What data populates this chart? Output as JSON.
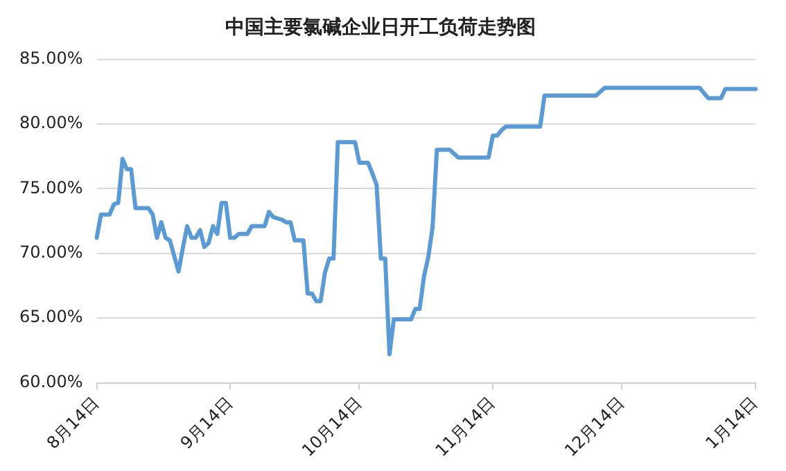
{
  "chart_data": {
    "type": "line",
    "title": "中国主要氯碱企业日开工负荷走势图",
    "categories": [
      "8月14日",
      null,
      null,
      null,
      null,
      null,
      null,
      null,
      null,
      null,
      null,
      null,
      null,
      null,
      null,
      null,
      null,
      null,
      null,
      null,
      null,
      null,
      null,
      null,
      null,
      null,
      null,
      null,
      null,
      null,
      null,
      "9月14日",
      null,
      null,
      null,
      null,
      null,
      null,
      null,
      null,
      null,
      null,
      null,
      null,
      null,
      null,
      null,
      null,
      null,
      null,
      null,
      null,
      null,
      null,
      null,
      null,
      null,
      null,
      null,
      null,
      null,
      "10月14日",
      null,
      null,
      null,
      null,
      null,
      null,
      null,
      null,
      null,
      null,
      null,
      null,
      null,
      null,
      null,
      null,
      null,
      null,
      null,
      null,
      null,
      null,
      null,
      null,
      null,
      null,
      null,
      null,
      null,
      null,
      "11月14日",
      null,
      null,
      null,
      null,
      null,
      null,
      null,
      null,
      null,
      null,
      null,
      null,
      null,
      null,
      null,
      null,
      null,
      null,
      null,
      null,
      null,
      null,
      null,
      null,
      null,
      null,
      null,
      null,
      null,
      "12月14日",
      null,
      null,
      null,
      null,
      null,
      null,
      null,
      null,
      null,
      null,
      null,
      null,
      null,
      null,
      null,
      null,
      null,
      null,
      null,
      null,
      null,
      null,
      null,
      null,
      null,
      null,
      null,
      null,
      null,
      null,
      "1月14日"
    ],
    "series": [
      {
        "color": "#5b9bd5",
        "values": [
          71.2,
          73.0,
          73.0,
          73.0,
          73.8,
          73.9,
          77.3,
          76.5,
          76.5,
          73.5,
          73.5,
          73.5,
          73.5,
          73.0,
          71.2,
          72.4,
          71.2,
          71.0,
          69.8,
          68.6,
          70.4,
          72.1,
          71.2,
          71.2,
          71.8,
          70.5,
          70.8,
          72.1,
          71.5,
          73.9,
          73.9,
          71.2,
          71.2,
          71.5,
          71.5,
          71.5,
          72.1,
          72.1,
          72.1,
          72.1,
          73.2,
          72.8,
          72.7,
          72.6,
          72.4,
          72.4,
          71.0,
          71.0,
          71.0,
          66.9,
          66.9,
          66.3,
          66.3,
          68.5,
          69.6,
          69.6,
          78.6,
          78.6,
          78.6,
          78.6,
          78.6,
          77.0,
          77.0,
          77.0,
          76.2,
          75.3,
          69.6,
          69.6,
          62.2,
          64.9,
          64.9,
          64.9,
          64.9,
          64.9,
          65.7,
          65.7,
          68.2,
          69.7,
          72.0,
          78.0,
          78.0,
          78.0,
          78.0,
          77.7,
          77.4,
          77.4,
          77.4,
          77.4,
          77.4,
          77.4,
          77.4,
          77.4,
          79.1,
          79.1,
          79.5,
          79.8,
          79.8,
          79.8,
          79.8,
          79.8,
          79.8,
          79.8,
          79.8,
          79.8,
          82.2,
          82.2,
          82.2,
          82.2,
          82.2,
          82.2,
          82.2,
          82.2,
          82.2,
          82.2,
          82.2,
          82.2,
          82.2,
          82.5,
          82.8,
          82.8,
          82.8,
          82.8,
          82.8,
          82.8,
          82.8,
          82.8,
          82.8,
          82.8,
          82.8,
          82.8,
          82.8,
          82.8,
          82.8,
          82.8,
          82.8,
          82.8,
          82.8,
          82.8,
          82.8,
          82.8,
          82.8,
          82.4,
          82.0,
          82.0,
          82.0,
          82.0,
          82.7,
          82.7,
          82.7,
          82.7,
          82.7,
          82.7,
          82.7,
          82.7
        ]
      }
    ],
    "ylim": [
      60,
      85
    ],
    "yticks": [
      {
        "value": 60,
        "label": "60.00%"
      },
      {
        "value": 65,
        "label": "65.00%"
      },
      {
        "value": 70,
        "label": "70.00%"
      },
      {
        "value": 75,
        "label": "75.00%"
      },
      {
        "value": 80,
        "label": "80.00%"
      },
      {
        "value": 85,
        "label": "85.00%"
      }
    ],
    "grid": "y",
    "legend": false,
    "marker": "none",
    "line_style": "solid"
  }
}
